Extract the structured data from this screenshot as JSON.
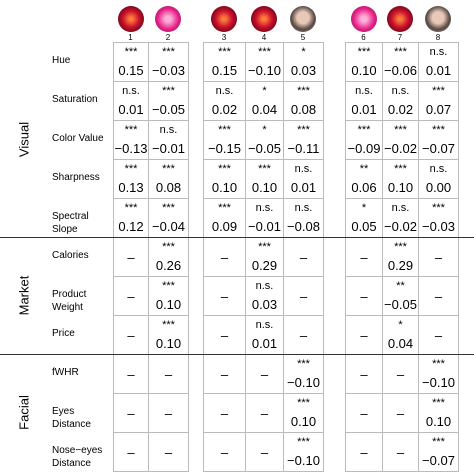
{
  "columns": [
    "1",
    "2",
    "3",
    "4",
    "5",
    "6",
    "7",
    "8"
  ],
  "sections": [
    {
      "label": "Visual",
      "rows": [
        0,
        4
      ]
    },
    {
      "label": "Market",
      "rows": [
        5,
        7
      ]
    },
    {
      "label": "Facial",
      "rows": [
        8,
        10
      ]
    }
  ],
  "rows": [
    {
      "label": "Hue",
      "cells": [
        [
          "***",
          "0.15"
        ],
        [
          "***",
          "−0.03"
        ],
        [
          "***",
          "0.15"
        ],
        [
          "***",
          "−0.10"
        ],
        [
          "*",
          "0.03"
        ],
        [
          "***",
          "0.10"
        ],
        [
          "***",
          "−0.06"
        ],
        [
          "n.s.",
          "0.01"
        ]
      ]
    },
    {
      "label": "Saturation",
      "cells": [
        [
          "n.s.",
          "0.01"
        ],
        [
          "***",
          "−0.05"
        ],
        [
          "n.s.",
          "0.02"
        ],
        [
          "*",
          "0.04"
        ],
        [
          "***",
          "0.08"
        ],
        [
          "n.s.",
          "0.01"
        ],
        [
          "n.s.",
          "0.02"
        ],
        [
          "***",
          "0.07"
        ]
      ]
    },
    {
      "label": "Color Value",
      "cells": [
        [
          "***",
          "−0.13"
        ],
        [
          "n.s.",
          "−0.01"
        ],
        [
          "***",
          "−0.15"
        ],
        [
          "*",
          "−0.05"
        ],
        [
          "***",
          "−0.11"
        ],
        [
          "***",
          "−0.09"
        ],
        [
          "***",
          "−0.02"
        ],
        [
          "***",
          "−0.07"
        ]
      ]
    },
    {
      "label": "Sharpness",
      "cells": [
        [
          "***",
          "0.13"
        ],
        [
          "***",
          "0.08"
        ],
        [
          "***",
          "0.10"
        ],
        [
          "***",
          "0.10"
        ],
        [
          "n.s.",
          "0.01"
        ],
        [
          "**",
          "0.06"
        ],
        [
          "***",
          "0.10"
        ],
        [
          "n.s.",
          "0.00"
        ]
      ]
    },
    {
      "label": "Spectral Slope",
      "cells": [
        [
          "***",
          "0.12"
        ],
        [
          "***",
          "−0.04"
        ],
        [
          "***",
          "0.09"
        ],
        [
          "n.s.",
          "−0.01"
        ],
        [
          "n.s.",
          "−0.08"
        ],
        [
          "*",
          "0.05"
        ],
        [
          "n.s.",
          "−0.02"
        ],
        [
          "***",
          "−0.03"
        ]
      ]
    },
    {
      "label": "Calories",
      "cells": [
        [
          "–"
        ],
        [
          "***",
          "0.26"
        ],
        [
          "–"
        ],
        [
          "***",
          "0.29"
        ],
        [
          "–"
        ],
        [
          "–"
        ],
        [
          "***",
          "0.29"
        ],
        [
          "–"
        ]
      ]
    },
    {
      "label": "Product Weight",
      "cells": [
        [
          "–"
        ],
        [
          "***",
          "0.10"
        ],
        [
          "–"
        ],
        [
          "n.s.",
          "0.03"
        ],
        [
          "–"
        ],
        [
          "–"
        ],
        [
          "**",
          "−0.05"
        ],
        [
          "–"
        ]
      ]
    },
    {
      "label": "Price",
      "cells": [
        [
          "–"
        ],
        [
          "***",
          "0.10"
        ],
        [
          "–"
        ],
        [
          "n.s.",
          "0.01"
        ],
        [
          "–"
        ],
        [
          "–"
        ],
        [
          "*",
          "0.04"
        ],
        [
          "–"
        ]
      ]
    },
    {
      "label": "fWHR",
      "cells": [
        [
          "–"
        ],
        [
          "–"
        ],
        [
          "–"
        ],
        [
          "–"
        ],
        [
          "***",
          "−0.10"
        ],
        [
          "–"
        ],
        [
          "–"
        ],
        [
          "***",
          "−0.10"
        ]
      ]
    },
    {
      "label": "Eyes Distance",
      "cells": [
        [
          "–"
        ],
        [
          "–"
        ],
        [
          "–"
        ],
        [
          "–"
        ],
        [
          "***",
          "0.10"
        ],
        [
          "–"
        ],
        [
          "–"
        ],
        [
          "***",
          "0.10"
        ]
      ]
    },
    {
      "label": "Nose−eyes Distance",
      "cells": [
        [
          "–"
        ],
        [
          "–"
        ],
        [
          "–"
        ],
        [
          "–"
        ],
        [
          "***",
          "−0.10"
        ],
        [
          "–"
        ],
        [
          "–"
        ],
        [
          "***",
          "−0.07"
        ]
      ]
    }
  ]
}
